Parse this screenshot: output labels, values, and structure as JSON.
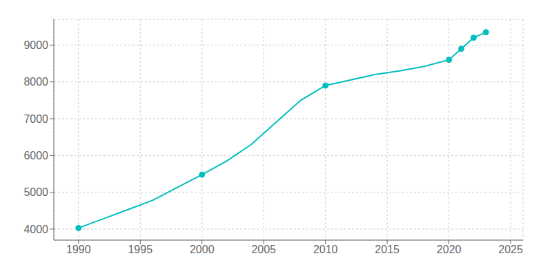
{
  "chart_data": {
    "type": "line",
    "x": [
      1990,
      1992,
      1994,
      1996,
      1998,
      2000,
      2002,
      2004,
      2006,
      2008,
      2010,
      2012,
      2014,
      2016,
      2018,
      2020,
      2021,
      2022,
      2023
    ],
    "series": [
      {
        "type": "line",
        "color": "#00BFBF",
        "values": [
          4030,
          4280,
          4530,
          4780,
          5130,
          5480,
          5850,
          6300,
          6900,
          7500,
          7900,
          8050,
          8200,
          8300,
          8420,
          8600,
          8900,
          9200,
          9350
        ]
      },
      {
        "type": "scatter",
        "color": "#00BFBF",
        "marker": "circle",
        "values": [
          4030,
          null,
          null,
          null,
          null,
          5480,
          null,
          null,
          null,
          null,
          7900,
          null,
          null,
          null,
          null,
          8600,
          8900,
          9200,
          9350
        ]
      }
    ],
    "xlim": [
      1988,
      2026
    ],
    "ylim": [
      3700,
      9700
    ],
    "xticks": [
      1990,
      1995,
      2000,
      2005,
      2010,
      2015,
      2020,
      2025
    ],
    "yticks": [
      4000,
      5000,
      6000,
      7000,
      8000,
      9000
    ],
    "grid": true
  }
}
